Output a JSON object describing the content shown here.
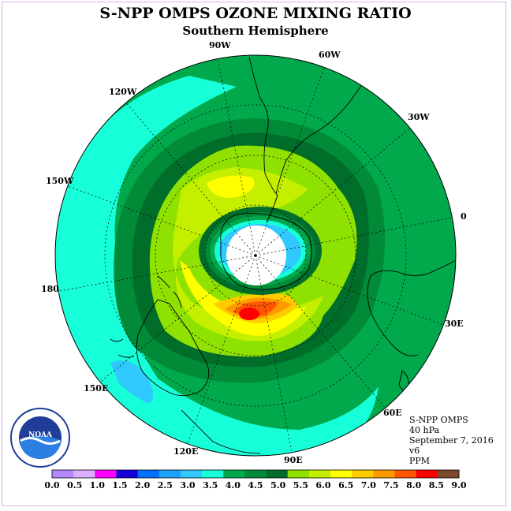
{
  "title": "S-NPP OMPS OZONE MIXING RATIO",
  "subtitle": "Southern Hemisphere",
  "info": {
    "instrument": "S-NPP OMPS",
    "level": "40 hPa",
    "date": "September 7, 2016",
    "version": "v6",
    "units": "PPM"
  },
  "longitude_labels": [
    "90W",
    "60W",
    "30W",
    "0",
    "30E",
    "60E",
    "90E",
    "120E",
    "150E",
    "180",
    "150W",
    "120W"
  ],
  "logo_text": "NOAA",
  "colorbar": {
    "ticks": [
      "0.0",
      "0.5",
      "1.0",
      "1.5",
      "2.0",
      "2.5",
      "3.0",
      "3.5",
      "4.0",
      "4.5",
      "5.0",
      "5.5",
      "6.0",
      "6.5",
      "7.0",
      "7.5",
      "8.0",
      "8.5",
      "9.0"
    ],
    "colors": [
      "#b388ff",
      "#dcb0ff",
      "#ff00ff",
      "#1400d8",
      "#0070ff",
      "#1ea0ff",
      "#2fc8ff",
      "#17ffd9",
      "#01a94c",
      "#018a38",
      "#016d2a",
      "#8ee100",
      "#c4f000",
      "#ffff00",
      "#ffcc00",
      "#ff9900",
      "#ff5500",
      "#ff0000",
      "#7b4a2a"
    ]
  }
}
